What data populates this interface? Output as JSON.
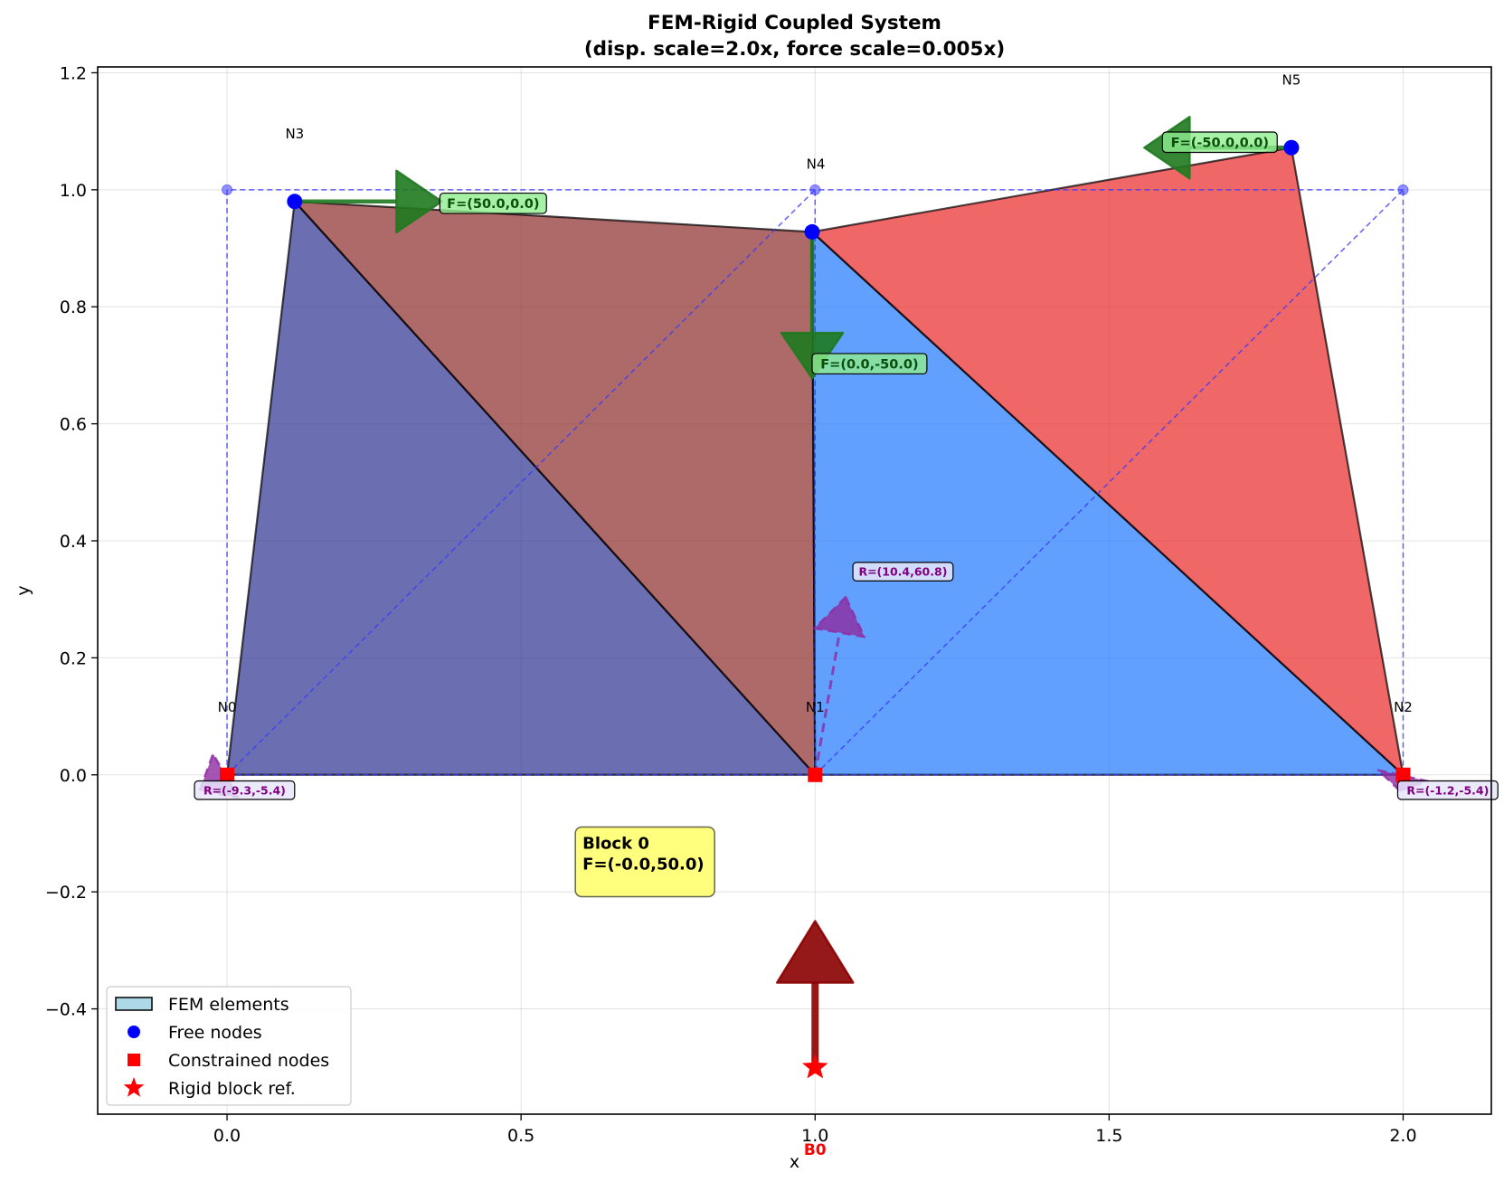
{
  "chart_data": {
    "type": "scatter",
    "title": "FEM-Rigid Coupled System\n(disp. scale=2.0x, force scale=0.005x)",
    "xlabel": "x",
    "ylabel": "y",
    "xlim": [
      -0.22,
      2.15
    ],
    "ylim": [
      -0.58,
      1.21
    ],
    "grid": true,
    "legend_placement": "lower-left",
    "x_ticks": [
      0.0,
      0.5,
      1.0,
      1.5,
      2.0
    ],
    "x_tick_labels": [
      "0.0",
      "0.5",
      "1.0",
      "1.5",
      "2.0"
    ],
    "y_ticks": [
      -0.4,
      -0.2,
      0.0,
      0.2,
      0.4,
      0.6,
      0.8,
      1.0,
      1.2
    ],
    "y_tick_labels": [
      "−0.4",
      "−0.2",
      "0.0",
      "0.2",
      "0.4",
      "0.6",
      "0.8",
      "1.0",
      "1.2"
    ],
    "undeformed_nodes": [
      [
        0,
        0
      ],
      [
        1,
        0
      ],
      [
        2,
        0
      ],
      [
        0,
        1
      ],
      [
        1,
        1
      ],
      [
        2,
        1
      ]
    ],
    "undeformed_edges": [
      [
        0,
        1
      ],
      [
        1,
        4
      ],
      [
        4,
        3
      ],
      [
        3,
        0
      ],
      [
        0,
        4
      ],
      [
        1,
        2
      ],
      [
        2,
        5
      ],
      [
        5,
        4
      ],
      [
        1,
        5
      ]
    ],
    "elements": [
      {
        "points": [
          [
            0.0,
            0.0
          ],
          [
            1.0,
            0.0
          ],
          [
            0.115,
            0.98
          ]
        ],
        "color": "#2e3192"
      },
      {
        "points": [
          [
            0.115,
            0.98
          ],
          [
            1.0,
            0.0
          ],
          [
            0.995,
            0.928
          ]
        ],
        "color": "#8b2a2a"
      },
      {
        "points": [
          [
            1.0,
            0.0
          ],
          [
            2.0,
            0.0
          ],
          [
            0.995,
            0.928
          ]
        ],
        "color": "#1e78ff"
      },
      {
        "points": [
          [
            0.995,
            0.928
          ],
          [
            2.0,
            0.0
          ],
          [
            1.81,
            1.072
          ]
        ],
        "color": "#ea2626"
      }
    ],
    "nodes": [
      {
        "label": "N0",
        "x": 0.0,
        "y": 0.0,
        "constrained": true
      },
      {
        "label": "N1",
        "x": 1.0,
        "y": 0.0,
        "constrained": true
      },
      {
        "label": "N2",
        "x": 2.0,
        "y": 0.0,
        "constrained": true
      },
      {
        "label": "N3",
        "x": 0.115,
        "y": 0.98,
        "constrained": false
      },
      {
        "label": "N4",
        "x": 0.995,
        "y": 0.928,
        "constrained": false
      },
      {
        "label": "N5",
        "x": 1.81,
        "y": 1.072,
        "constrained": false
      }
    ],
    "applied_forces": [
      {
        "x": 0.115,
        "y": 0.98,
        "dx": 0.25,
        "dy": 0.0,
        "label": "F=(50.0,0.0)"
      },
      {
        "x": 0.995,
        "y": 0.928,
        "dx": 0.0,
        "dy": -0.25,
        "label": "F=(0.0,-50.0)"
      },
      {
        "x": 1.81,
        "y": 1.072,
        "dx": -0.25,
        "dy": 0.0,
        "label": "F=(-50.0,0.0)"
      }
    ],
    "reactions": [
      {
        "x": 0.0,
        "y": 0.0,
        "dx": -0.0465,
        "dy": -0.027,
        "label": "R=(-9.3,-5.4)"
      },
      {
        "x": 1.0,
        "y": 0.0,
        "dx": 0.052,
        "dy": 0.304,
        "label": "R=(10.4,60.8)"
      },
      {
        "x": 2.0,
        "y": 0.0,
        "dx": -0.006,
        "dy": -0.027,
        "label": "R=(-1.2,-5.4)"
      }
    ],
    "rigid_block": {
      "ref_label": "B0",
      "x": 1.0,
      "y": -0.5,
      "force": {
        "dx": 0.0,
        "dy": 0.25
      },
      "box_title": "Block 0",
      "box_force": "F=(-0.0,50.0)"
    },
    "legend": [
      {
        "label": "FEM elements",
        "marker": "patch"
      },
      {
        "label": "Free nodes",
        "marker": "circle"
      },
      {
        "label": "Constrained nodes",
        "marker": "square"
      },
      {
        "label": "Rigid block ref.",
        "marker": "star"
      }
    ]
  },
  "colors": {
    "free_node": "#0000ff",
    "constrained_node": "#ff0000",
    "force_arrow": "#1f7a1f",
    "reaction_arrow": "#8e2aa0",
    "block_arrow": "#8b0000",
    "undeformed_mesh": "#3a3aff",
    "annotation_box": "#ffff66"
  }
}
